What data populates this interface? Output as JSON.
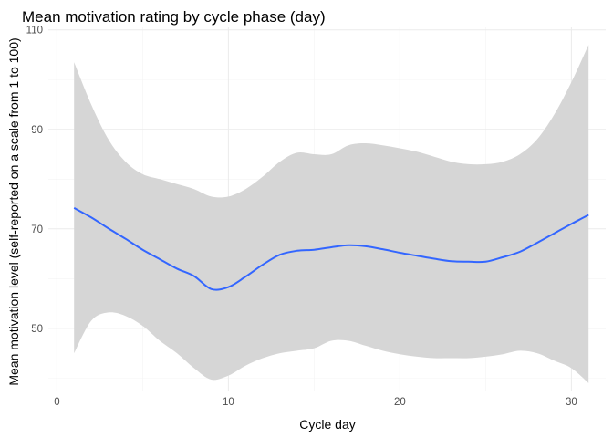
{
  "chart_data": {
    "type": "line",
    "title": "Mean motivation rating by cycle phase (day)",
    "xlabel": "Cycle day",
    "ylabel": "Mean motivation level (self-reported on a scale from 1 to 100)",
    "xlim": [
      -0.5,
      32
    ],
    "ylim": [
      37.5,
      110.5
    ],
    "x_ticks": [
      0,
      10,
      20,
      30
    ],
    "y_ticks": [
      50,
      70,
      90,
      110
    ],
    "x_minor_ticks": [
      5,
      15,
      25
    ],
    "y_minor_ticks": [
      40,
      60,
      80,
      100
    ],
    "grid": true,
    "colors": {
      "line": "#3366ff",
      "ribbon": "#d6d6d6"
    },
    "series": [
      {
        "x": [
          1,
          2,
          3,
          4,
          5,
          6,
          7,
          8,
          9,
          10,
          11,
          12,
          13,
          14,
          15,
          16,
          17,
          18,
          19,
          20,
          21,
          22,
          23,
          24,
          25,
          26,
          27,
          28,
          29,
          30,
          31
        ],
        "y": [
          74.2,
          72.3,
          70.1,
          68.0,
          65.8,
          63.9,
          62.0,
          60.5,
          57.9,
          58.3,
          60.4,
          62.8,
          64.8,
          65.6,
          65.8,
          66.3,
          66.7,
          66.5,
          65.9,
          65.2,
          64.6,
          64.0,
          63.5,
          63.4,
          63.4,
          64.3,
          65.4,
          67.2,
          69.1,
          71.0,
          72.8
        ],
        "lower": [
          45.0,
          51.5,
          53.2,
          52.5,
          50.5,
          47.5,
          45.0,
          42.0,
          39.7,
          40.5,
          42.5,
          44.0,
          45.0,
          45.5,
          46.0,
          47.5,
          47.5,
          46.5,
          45.5,
          44.8,
          44.3,
          44.0,
          44.0,
          44.0,
          44.3,
          44.8,
          45.5,
          45.0,
          43.5,
          42.0,
          39.0
        ],
        "upper": [
          103.5,
          95.0,
          88.0,
          83.5,
          81.0,
          80.0,
          79.0,
          78.0,
          76.5,
          76.5,
          78.0,
          80.5,
          83.5,
          85.3,
          85.0,
          85.0,
          86.8,
          87.2,
          86.8,
          86.2,
          85.5,
          84.5,
          83.5,
          83.0,
          83.0,
          83.5,
          85.0,
          88.0,
          93.0,
          99.5,
          107.0
        ]
      }
    ]
  }
}
